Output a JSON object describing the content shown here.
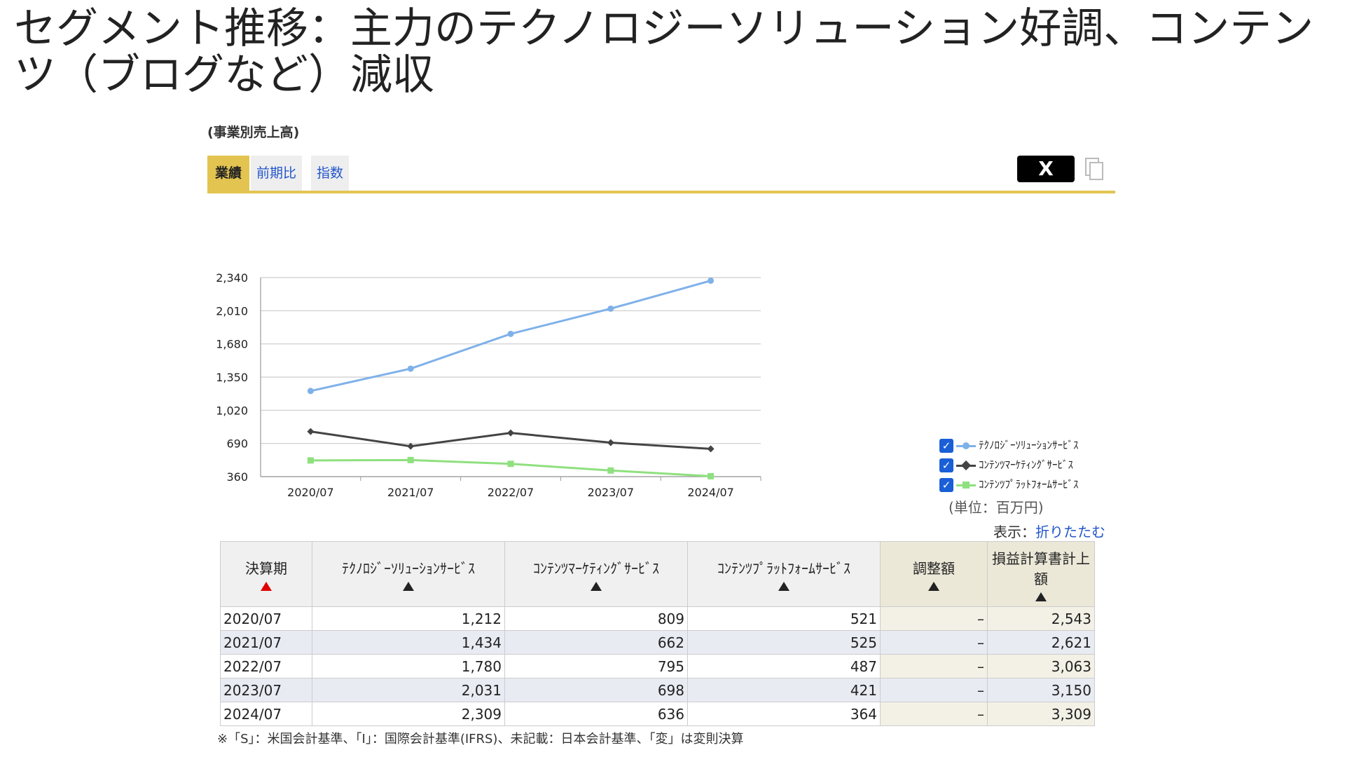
{
  "slide_title": "セグメント推移：主力のテクノロジーソリューション好調、コンテンツ（ブログなど）減収",
  "panel_heading": "(事業別売上高)",
  "tabs": [
    {
      "label": "業績",
      "active": true
    },
    {
      "label": "前期比",
      "active": false
    },
    {
      "label": "指数",
      "active": false
    }
  ],
  "share_button": "X",
  "unit_label": "(単位：百万円)",
  "fold_prefix": "表示：",
  "fold_link": "折りたたむ",
  "chart_data": {
    "type": "line",
    "categories": [
      "2020/07",
      "2021/07",
      "2022/07",
      "2023/07",
      "2024/07"
    ],
    "y_ticks": [
      "2,340",
      "2,010",
      "1,680",
      "1,350",
      "1,020",
      "690",
      "360"
    ],
    "ylim": [
      360,
      2340
    ],
    "grid": true,
    "legend_position": "right",
    "series": [
      {
        "name": "ﾃｸﾉﾛｼﾞｰｿﾘｭｰｼｮﾝｻｰﾋﾞｽ",
        "values": [
          1212,
          1434,
          1780,
          2031,
          2309
        ],
        "color": "#7fb1e9",
        "marker": "circle"
      },
      {
        "name": "ｺﾝﾃﾝﾂﾏｰｹﾃｨﾝｸﾞｻｰﾋﾞｽ",
        "values": [
          809,
          662,
          795,
          698,
          636
        ],
        "color": "#444444",
        "marker": "diamond"
      },
      {
        "name": "ｺﾝﾃﾝﾂﾌﾟﾗｯﾄﾌｫｰﾑｻｰﾋﾞｽ",
        "values": [
          521,
          525,
          487,
          421,
          364
        ],
        "color": "#8fe07f",
        "marker": "square"
      }
    ]
  },
  "table": {
    "headers": [
      "決算期",
      "ﾃｸﾉﾛｼﾞｰｿﾘｭｰｼｮﾝｻｰﾋﾞｽ",
      "ｺﾝﾃﾝﾂﾏｰｹﾃｨﾝｸﾞｻｰﾋﾞｽ",
      "ｺﾝﾃﾝﾂﾌﾟﾗｯﾄﾌｫｰﾑｻｰﾋﾞｽ",
      "調整額",
      "損益計算書計上額"
    ],
    "rows": [
      [
        "2020/07",
        "1,212",
        "809",
        "521",
        "–",
        "2,543"
      ],
      [
        "2021/07",
        "1,434",
        "662",
        "525",
        "–",
        "2,621"
      ],
      [
        "2022/07",
        "1,780",
        "795",
        "487",
        "–",
        "3,063"
      ],
      [
        "2023/07",
        "2,031",
        "698",
        "421",
        "–",
        "3,150"
      ],
      [
        "2024/07",
        "2,309",
        "636",
        "364",
        "–",
        "3,309"
      ]
    ]
  },
  "footnote": "※「S」：米国会計基準、「I」：国際会計基準(IFRS)、未記載：日本会計基準、「変」は変則決算"
}
